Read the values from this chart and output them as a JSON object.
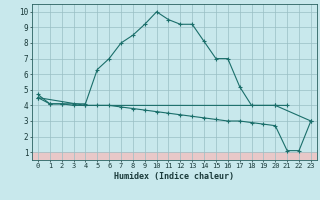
{
  "xlabel": "Humidex (Indice chaleur)",
  "bg_color": "#c8e8ec",
  "plot_bg_color": "#c8e8ec",
  "bottom_band_color": "#e8c8c8",
  "grid_color": "#9abfc4",
  "line_color": "#1a6e6a",
  "xlim": [
    -0.5,
    23.5
  ],
  "ylim": [
    0.5,
    10.5
  ],
  "yticks": [
    1,
    2,
    3,
    4,
    5,
    6,
    7,
    8,
    9,
    10
  ],
  "xticks": [
    0,
    1,
    2,
    3,
    4,
    5,
    6,
    7,
    8,
    9,
    10,
    11,
    12,
    13,
    14,
    15,
    16,
    17,
    18,
    19,
    20,
    21,
    22,
    23
  ],
  "line1_x": [
    0,
    1,
    2,
    3,
    4,
    5,
    6,
    7,
    8,
    9,
    10,
    11,
    12,
    13,
    14,
    15,
    16,
    17,
    18,
    20,
    21
  ],
  "line1_y": [
    4.7,
    4.1,
    4.1,
    4.1,
    4.1,
    6.3,
    7.0,
    8.0,
    8.5,
    9.2,
    10.0,
    9.5,
    9.2,
    9.2,
    8.1,
    7.0,
    7.0,
    5.2,
    4.0,
    4.0,
    4.0
  ],
  "line2_x": [
    0,
    1,
    2,
    3,
    4,
    5,
    6,
    7,
    8,
    9,
    10,
    11,
    12,
    13,
    14,
    15,
    16,
    17,
    18,
    19,
    20,
    21,
    22,
    23
  ],
  "line2_y": [
    4.5,
    4.1,
    4.1,
    4.0,
    4.0,
    4.0,
    4.0,
    3.9,
    3.8,
    3.7,
    3.6,
    3.5,
    3.4,
    3.3,
    3.2,
    3.1,
    3.0,
    3.0,
    2.9,
    2.8,
    2.7,
    1.1,
    1.1,
    3.0
  ],
  "line3_x": [
    0,
    4,
    20,
    23
  ],
  "line3_y": [
    4.5,
    4.0,
    4.0,
    3.0
  ]
}
